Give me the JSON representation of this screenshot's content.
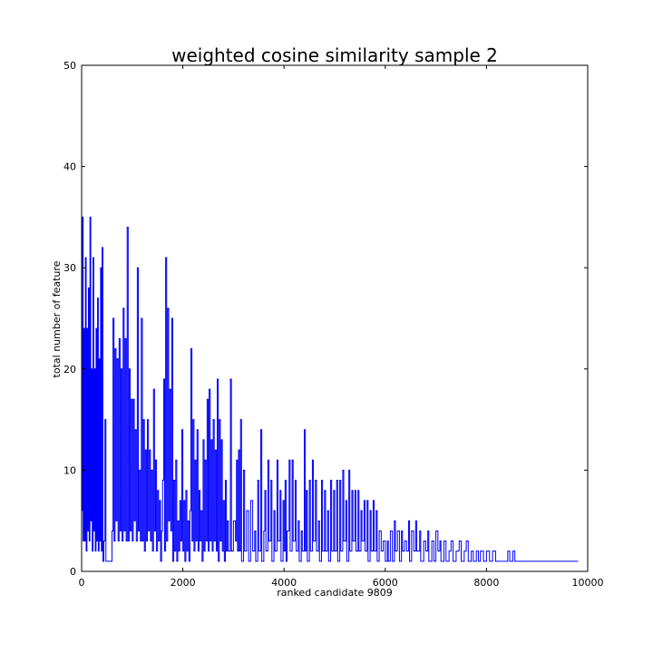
{
  "chart_data": {
    "type": "line",
    "title": "weighted cosine similarity sample 2",
    "xlabel": "ranked candidate 9809",
    "ylabel": "total number of feature",
    "xlim": [
      0,
      10000
    ],
    "ylim": [
      0,
      50
    ],
    "x_ticks": [
      "0",
      "2000",
      "4000",
      "6000",
      "8000",
      "10000"
    ],
    "y_ticks": [
      "0",
      "10",
      "20",
      "30",
      "40",
      "50"
    ],
    "grid": false,
    "legend": "none",
    "series": [
      {
        "color": "#0000ff",
        "drawstyle": "steps",
        "points": [
          [
            0,
            6
          ],
          [
            15,
            35
          ],
          [
            30,
            3
          ],
          [
            45,
            24
          ],
          [
            60,
            3
          ],
          [
            75,
            31
          ],
          [
            90,
            2
          ],
          [
            105,
            24
          ],
          [
            120,
            4
          ],
          [
            135,
            28
          ],
          [
            150,
            3
          ],
          [
            165,
            35
          ],
          [
            180,
            5
          ],
          [
            195,
            20
          ],
          [
            210,
            2
          ],
          [
            225,
            31
          ],
          [
            240,
            4
          ],
          [
            255,
            20
          ],
          [
            270,
            2
          ],
          [
            285,
            24
          ],
          [
            300,
            3
          ],
          [
            315,
            27
          ],
          [
            330,
            2
          ],
          [
            345,
            21
          ],
          [
            360,
            3
          ],
          [
            375,
            30
          ],
          [
            390,
            2
          ],
          [
            405,
            32
          ],
          [
            420,
            1
          ],
          [
            440,
            3
          ],
          [
            460,
            15
          ],
          [
            480,
            1
          ],
          [
            520,
            1
          ],
          [
            560,
            1
          ],
          [
            600,
            4
          ],
          [
            620,
            25
          ],
          [
            640,
            3
          ],
          [
            660,
            22
          ],
          [
            680,
            5
          ],
          [
            700,
            21
          ],
          [
            720,
            3
          ],
          [
            740,
            23
          ],
          [
            760,
            4
          ],
          [
            780,
            20
          ],
          [
            800,
            3
          ],
          [
            820,
            26
          ],
          [
            840,
            4
          ],
          [
            860,
            23
          ],
          [
            880,
            3
          ],
          [
            900,
            34
          ],
          [
            920,
            3
          ],
          [
            940,
            20
          ],
          [
            960,
            4
          ],
          [
            980,
            17
          ],
          [
            1000,
            3
          ],
          [
            1020,
            17
          ],
          [
            1040,
            5
          ],
          [
            1060,
            14
          ],
          [
            1080,
            3
          ],
          [
            1100,
            30
          ],
          [
            1120,
            4
          ],
          [
            1140,
            10
          ],
          [
            1160,
            3
          ],
          [
            1180,
            25
          ],
          [
            1200,
            3
          ],
          [
            1220,
            15
          ],
          [
            1240,
            2
          ],
          [
            1260,
            12
          ],
          [
            1280,
            3
          ],
          [
            1300,
            15
          ],
          [
            1320,
            4
          ],
          [
            1340,
            12
          ],
          [
            1360,
            3
          ],
          [
            1380,
            10
          ],
          [
            1400,
            2
          ],
          [
            1420,
            18
          ],
          [
            1440,
            4
          ],
          [
            1460,
            11
          ],
          [
            1480,
            2
          ],
          [
            1500,
            8
          ],
          [
            1520,
            3
          ],
          [
            1540,
            7
          ],
          [
            1560,
            1
          ],
          [
            1580,
            4
          ],
          [
            1600,
            9
          ],
          [
            1620,
            19
          ],
          [
            1640,
            2
          ],
          [
            1660,
            31
          ],
          [
            1680,
            3
          ],
          [
            1700,
            26
          ],
          [
            1720,
            5
          ],
          [
            1740,
            18
          ],
          [
            1760,
            4
          ],
          [
            1780,
            25
          ],
          [
            1800,
            1
          ],
          [
            1820,
            9
          ],
          [
            1840,
            2
          ],
          [
            1860,
            11
          ],
          [
            1880,
            1
          ],
          [
            1900,
            5
          ],
          [
            1920,
            2
          ],
          [
            1940,
            7
          ],
          [
            1960,
            3
          ],
          [
            1980,
            14
          ],
          [
            2000,
            2
          ],
          [
            2020,
            7
          ],
          [
            2040,
            1
          ],
          [
            2060,
            8
          ],
          [
            2080,
            2
          ],
          [
            2100,
            5
          ],
          [
            2120,
            1
          ],
          [
            2140,
            6
          ],
          [
            2160,
            22
          ],
          [
            2180,
            3
          ],
          [
            2200,
            15
          ],
          [
            2220,
            2
          ],
          [
            2240,
            11
          ],
          [
            2260,
            3
          ],
          [
            2280,
            14
          ],
          [
            2300,
            2
          ],
          [
            2320,
            8
          ],
          [
            2340,
            3
          ],
          [
            2360,
            6
          ],
          [
            2380,
            1
          ],
          [
            2400,
            13
          ],
          [
            2420,
            2
          ],
          [
            2440,
            11
          ],
          [
            2460,
            3
          ],
          [
            2480,
            17
          ],
          [
            2500,
            2
          ],
          [
            2520,
            18
          ],
          [
            2540,
            3
          ],
          [
            2560,
            13
          ],
          [
            2580,
            2
          ],
          [
            2600,
            15
          ],
          [
            2620,
            3
          ],
          [
            2640,
            12
          ],
          [
            2660,
            2
          ],
          [
            2680,
            19
          ],
          [
            2700,
            1
          ],
          [
            2720,
            15
          ],
          [
            2740,
            3
          ],
          [
            2760,
            13
          ],
          [
            2780,
            2
          ],
          [
            2800,
            7
          ],
          [
            2820,
            1
          ],
          [
            2840,
            9
          ],
          [
            2860,
            2
          ],
          [
            2880,
            5
          ],
          [
            2900,
            2
          ],
          [
            2940,
            19
          ],
          [
            2960,
            2
          ],
          [
            3000,
            5
          ],
          [
            3040,
            3
          ],
          [
            3060,
            11
          ],
          [
            3080,
            2
          ],
          [
            3100,
            12
          ],
          [
            3120,
            2
          ],
          [
            3140,
            15
          ],
          [
            3160,
            1
          ],
          [
            3200,
            10
          ],
          [
            3220,
            2
          ],
          [
            3260,
            6
          ],
          [
            3300,
            1
          ],
          [
            3340,
            7
          ],
          [
            3380,
            2
          ],
          [
            3420,
            4
          ],
          [
            3440,
            1
          ],
          [
            3480,
            9
          ],
          [
            3500,
            2
          ],
          [
            3540,
            14
          ],
          [
            3560,
            1
          ],
          [
            3600,
            4
          ],
          [
            3620,
            8
          ],
          [
            3640,
            2
          ],
          [
            3680,
            11
          ],
          [
            3700,
            3
          ],
          [
            3740,
            9
          ],
          [
            3760,
            1
          ],
          [
            3800,
            6
          ],
          [
            3820,
            2
          ],
          [
            3860,
            11
          ],
          [
            3880,
            3
          ],
          [
            3920,
            8
          ],
          [
            3940,
            1
          ],
          [
            3980,
            7
          ],
          [
            4000,
            2
          ],
          [
            4020,
            9
          ],
          [
            4040,
            1
          ],
          [
            4060,
            4
          ],
          [
            4100,
            11
          ],
          [
            4120,
            2
          ],
          [
            4160,
            11
          ],
          [
            4180,
            3
          ],
          [
            4220,
            9
          ],
          [
            4240,
            2
          ],
          [
            4280,
            5
          ],
          [
            4300,
            1
          ],
          [
            4340,
            4
          ],
          [
            4360,
            2
          ],
          [
            4400,
            14
          ],
          [
            4420,
            2
          ],
          [
            4440,
            8
          ],
          [
            4460,
            1
          ],
          [
            4500,
            9
          ],
          [
            4520,
            2
          ],
          [
            4560,
            11
          ],
          [
            4580,
            3
          ],
          [
            4620,
            9
          ],
          [
            4640,
            2
          ],
          [
            4680,
            5
          ],
          [
            4700,
            1
          ],
          [
            4740,
            9
          ],
          [
            4760,
            2
          ],
          [
            4800,
            8
          ],
          [
            4820,
            2
          ],
          [
            4860,
            6
          ],
          [
            4880,
            1
          ],
          [
            4920,
            9
          ],
          [
            4940,
            2
          ],
          [
            4980,
            8
          ],
          [
            5000,
            2
          ],
          [
            5040,
            9
          ],
          [
            5060,
            1
          ],
          [
            5100,
            9
          ],
          [
            5120,
            2
          ],
          [
            5160,
            10
          ],
          [
            5180,
            3
          ],
          [
            5220,
            7
          ],
          [
            5240,
            1
          ],
          [
            5280,
            10
          ],
          [
            5300,
            2
          ],
          [
            5340,
            8
          ],
          [
            5360,
            3
          ],
          [
            5400,
            8
          ],
          [
            5420,
            2
          ],
          [
            5460,
            8
          ],
          [
            5480,
            2
          ],
          [
            5520,
            6
          ],
          [
            5540,
            3
          ],
          [
            5580,
            7
          ],
          [
            5600,
            2
          ],
          [
            5640,
            7
          ],
          [
            5660,
            1
          ],
          [
            5700,
            6
          ],
          [
            5720,
            2
          ],
          [
            5760,
            7
          ],
          [
            5780,
            2
          ],
          [
            5820,
            6
          ],
          [
            5840,
            1
          ],
          [
            5880,
            4
          ],
          [
            5920,
            2
          ],
          [
            5960,
            3
          ],
          [
            6000,
            1
          ],
          [
            6040,
            3
          ],
          [
            6060,
            1
          ],
          [
            6100,
            4
          ],
          [
            6140,
            1
          ],
          [
            6180,
            5
          ],
          [
            6200,
            2
          ],
          [
            6240,
            4
          ],
          [
            6280,
            1
          ],
          [
            6320,
            4
          ],
          [
            6340,
            2
          ],
          [
            6380,
            3
          ],
          [
            6420,
            2
          ],
          [
            6460,
            5
          ],
          [
            6480,
            1
          ],
          [
            6520,
            4
          ],
          [
            6560,
            2
          ],
          [
            6600,
            5
          ],
          [
            6620,
            2
          ],
          [
            6680,
            4
          ],
          [
            6700,
            1
          ],
          [
            6760,
            3
          ],
          [
            6800,
            2
          ],
          [
            6840,
            4
          ],
          [
            6860,
            1
          ],
          [
            6920,
            3
          ],
          [
            6960,
            1
          ],
          [
            7000,
            4
          ],
          [
            7040,
            2
          ],
          [
            7080,
            3
          ],
          [
            7100,
            1
          ],
          [
            7160,
            3
          ],
          [
            7200,
            1
          ],
          [
            7260,
            2
          ],
          [
            7300,
            3
          ],
          [
            7340,
            1
          ],
          [
            7400,
            2
          ],
          [
            7460,
            3
          ],
          [
            7500,
            1
          ],
          [
            7560,
            2
          ],
          [
            7600,
            3
          ],
          [
            7640,
            1
          ],
          [
            7700,
            2
          ],
          [
            7740,
            1
          ],
          [
            7800,
            2
          ],
          [
            7840,
            1
          ],
          [
            7880,
            2
          ],
          [
            7940,
            1
          ],
          [
            8000,
            2
          ],
          [
            8060,
            1
          ],
          [
            8120,
            2
          ],
          [
            8180,
            1
          ],
          [
            8240,
            1
          ],
          [
            8280,
            1
          ],
          [
            8360,
            1
          ],
          [
            8420,
            2
          ],
          [
            8460,
            1
          ],
          [
            8520,
            2
          ],
          [
            8560,
            1
          ],
          [
            8620,
            1
          ],
          [
            8700,
            1
          ],
          [
            8740,
            1
          ],
          [
            9000,
            1
          ],
          [
            9500,
            1
          ],
          [
            9809,
            1
          ]
        ]
      }
    ]
  }
}
